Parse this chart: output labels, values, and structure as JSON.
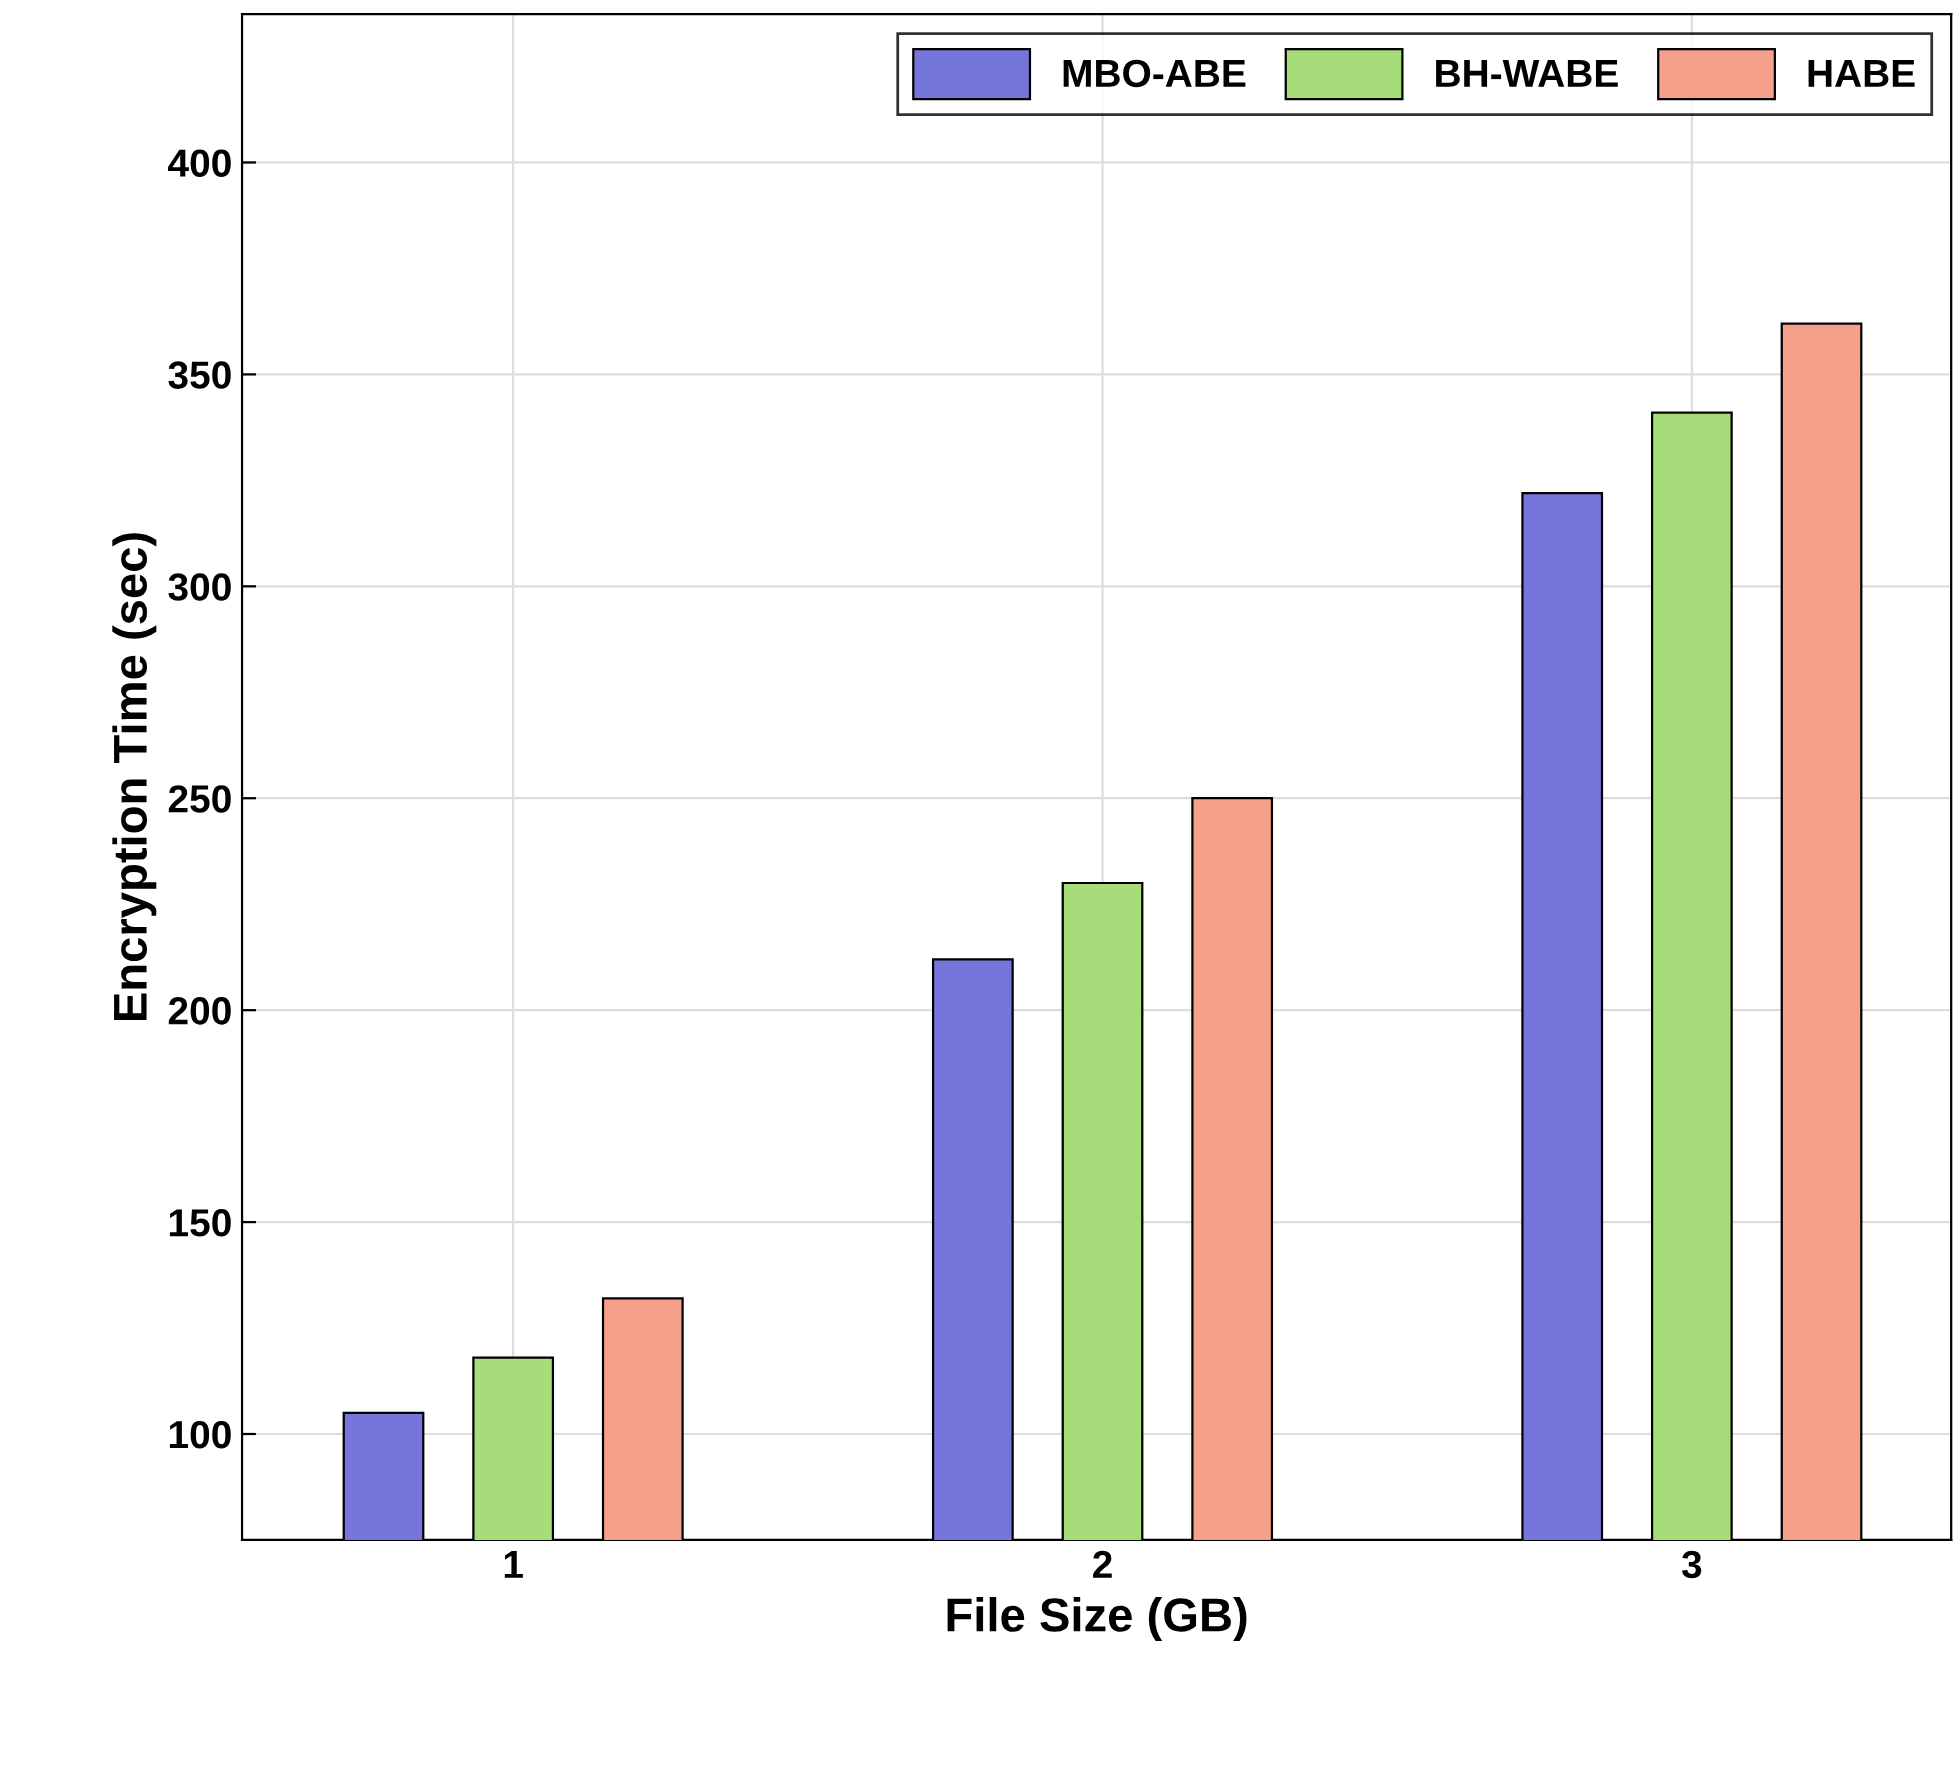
{
  "chart_data": {
    "type": "bar",
    "xlabel": "File Size (GB)",
    "ylabel": "Encryption Time (sec)",
    "categories": [
      "1",
      "2",
      "3"
    ],
    "series": [
      {
        "name": "MBO-ABE",
        "color": "#7575db",
        "values": [
          105,
          212,
          322
        ]
      },
      {
        "name": "BH-WABE",
        "color": "#a6dd7a",
        "values": [
          118,
          230,
          341
        ]
      },
      {
        "name": "HABE",
        "color": "#f4a08a",
        "values": [
          132,
          250,
          362
        ]
      }
    ],
    "ylim": [
      75,
      435
    ],
    "yticks": [
      100,
      150,
      200,
      250,
      300,
      350,
      400
    ],
    "grid": true,
    "legend": "top right"
  }
}
